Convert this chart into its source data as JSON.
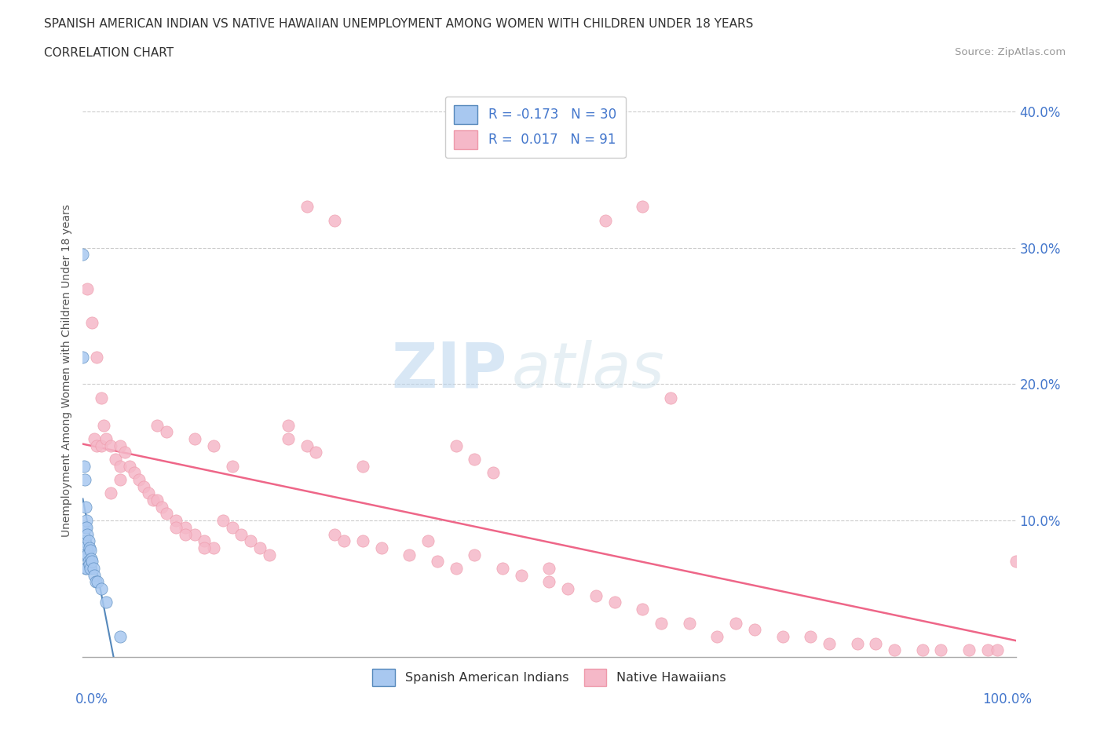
{
  "title_line1": "SPANISH AMERICAN INDIAN VS NATIVE HAWAIIAN UNEMPLOYMENT AMONG WOMEN WITH CHILDREN UNDER 18 YEARS",
  "title_line2": "CORRELATION CHART",
  "source_text": "Source: ZipAtlas.com",
  "ylabel": "Unemployment Among Women with Children Under 18 years",
  "xlim": [
    0.0,
    1.0
  ],
  "ylim": [
    0.0,
    0.42
  ],
  "watermark_zip": "ZIP",
  "watermark_atlas": "atlas",
  "legend_entry1_color": "#a8c8f0",
  "legend_entry1_text": "R = -0.173   N = 30",
  "legend_entry2_color": "#f5b8c8",
  "legend_entry2_text": "R =  0.017   N = 91",
  "legend_label1": "Spanish American Indians",
  "legend_label2": "Native Hawaiians",
  "regression_color_blue": "#5588bb",
  "regression_color_pink": "#ee6688",
  "blue_scatter_color": "#a8c8f0",
  "blue_edge_color": "#5588bb",
  "pink_scatter_color": "#f5b8c8",
  "pink_edge_color": "#ee99aa",
  "blue_x": [
    0.0,
    0.0,
    0.0,
    0.001,
    0.001,
    0.002,
    0.002,
    0.003,
    0.003,
    0.003,
    0.004,
    0.004,
    0.004,
    0.005,
    0.005,
    0.006,
    0.006,
    0.007,
    0.007,
    0.008,
    0.008,
    0.009,
    0.01,
    0.011,
    0.012,
    0.014,
    0.016,
    0.02,
    0.025,
    0.04
  ],
  "blue_y": [
    0.295,
    0.22,
    0.085,
    0.14,
    0.08,
    0.13,
    0.075,
    0.11,
    0.095,
    0.065,
    0.1,
    0.095,
    0.065,
    0.09,
    0.075,
    0.085,
    0.07,
    0.08,
    0.068,
    0.078,
    0.065,
    0.072,
    0.07,
    0.065,
    0.06,
    0.055,
    0.055,
    0.05,
    0.04,
    0.015
  ],
  "pink_x": [
    0.005,
    0.01,
    0.012,
    0.015,
    0.015,
    0.02,
    0.02,
    0.022,
    0.025,
    0.03,
    0.03,
    0.035,
    0.04,
    0.04,
    0.04,
    0.045,
    0.05,
    0.055,
    0.06,
    0.065,
    0.07,
    0.075,
    0.08,
    0.085,
    0.09,
    0.1,
    0.11,
    0.12,
    0.13,
    0.14,
    0.15,
    0.16,
    0.17,
    0.18,
    0.19,
    0.2,
    0.22,
    0.22,
    0.24,
    0.25,
    0.27,
    0.28,
    0.3,
    0.3,
    0.32,
    0.35,
    0.37,
    0.38,
    0.4,
    0.42,
    0.45,
    0.47,
    0.5,
    0.5,
    0.52,
    0.55,
    0.57,
    0.6,
    0.62,
    0.65,
    0.68,
    0.7,
    0.72,
    0.75,
    0.78,
    0.8,
    0.83,
    0.85,
    0.87,
    0.9,
    0.92,
    0.95,
    0.97,
    0.98,
    1.0,
    0.24,
    0.27,
    0.56,
    0.6,
    0.63,
    0.4,
    0.42,
    0.44,
    0.12,
    0.14,
    0.16,
    0.1,
    0.11,
    0.13,
    0.08,
    0.09
  ],
  "pink_y": [
    0.27,
    0.245,
    0.16,
    0.22,
    0.155,
    0.19,
    0.155,
    0.17,
    0.16,
    0.155,
    0.12,
    0.145,
    0.155,
    0.14,
    0.13,
    0.15,
    0.14,
    0.135,
    0.13,
    0.125,
    0.12,
    0.115,
    0.115,
    0.11,
    0.105,
    0.1,
    0.095,
    0.09,
    0.085,
    0.08,
    0.1,
    0.095,
    0.09,
    0.085,
    0.08,
    0.075,
    0.17,
    0.16,
    0.155,
    0.15,
    0.09,
    0.085,
    0.14,
    0.085,
    0.08,
    0.075,
    0.085,
    0.07,
    0.065,
    0.075,
    0.065,
    0.06,
    0.055,
    0.065,
    0.05,
    0.045,
    0.04,
    0.035,
    0.025,
    0.025,
    0.015,
    0.025,
    0.02,
    0.015,
    0.015,
    0.01,
    0.01,
    0.01,
    0.005,
    0.005,
    0.005,
    0.005,
    0.005,
    0.005,
    0.07,
    0.33,
    0.32,
    0.32,
    0.33,
    0.19,
    0.155,
    0.145,
    0.135,
    0.16,
    0.155,
    0.14,
    0.095,
    0.09,
    0.08,
    0.17,
    0.165
  ]
}
